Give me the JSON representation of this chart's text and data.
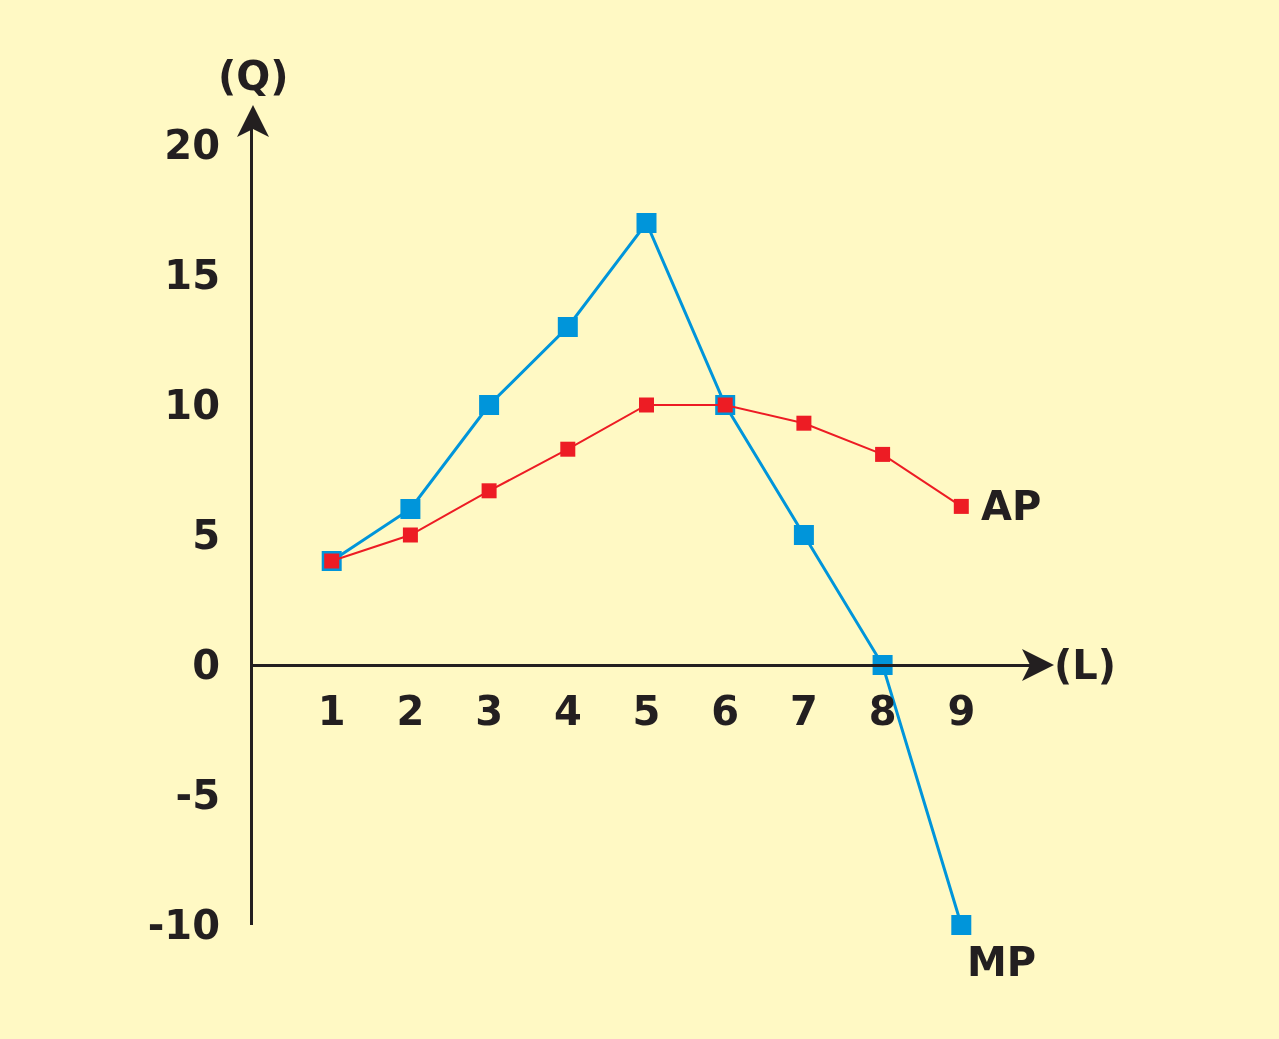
{
  "chart_data": {
    "type": "line",
    "xlabel": "(L)",
    "ylabel": "(Q)",
    "x": [
      1,
      2,
      3,
      4,
      5,
      6,
      7,
      8,
      9
    ],
    "series": [
      {
        "name": "MP",
        "color": "#0095da",
        "values": [
          4,
          6,
          10,
          13,
          17,
          10,
          5,
          0,
          -10
        ]
      },
      {
        "name": "AP",
        "color": "#ed1c24",
        "values": [
          4,
          5,
          6.7,
          8.3,
          10,
          10,
          9.3,
          8.1,
          6.1
        ]
      }
    ],
    "xlim": [
      0,
      10
    ],
    "ylim": [
      -10,
      21
    ],
    "xticks": [
      1,
      2,
      3,
      4,
      5,
      6,
      7,
      8,
      9
    ],
    "yticks": [
      -10,
      -5,
      0,
      5,
      10,
      15,
      20
    ],
    "grid": false,
    "legend": false,
    "marker": "square",
    "line_style": "solid"
  }
}
